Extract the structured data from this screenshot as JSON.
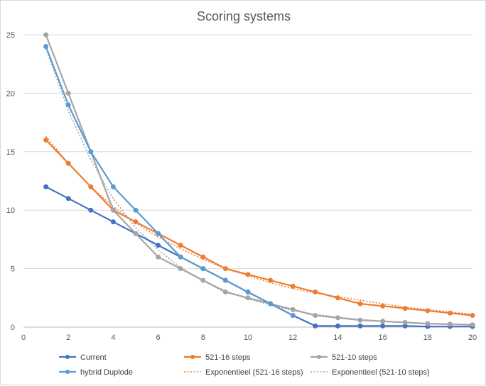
{
  "chart_data": {
    "type": "line",
    "title": "Scoring systems",
    "xlabel": "",
    "ylabel": "",
    "xlim": [
      0,
      20
    ],
    "ylim": [
      0,
      25
    ],
    "xticks": [
      0,
      2,
      4,
      6,
      8,
      10,
      12,
      14,
      16,
      18,
      20
    ],
    "yticks": [
      0,
      5,
      10,
      15,
      20,
      25
    ],
    "grid": "horizontal",
    "legend_position": "bottom",
    "series": [
      {
        "name": "Current",
        "color": "#4472c4",
        "style": "solid-markers",
        "x": [
          1,
          2,
          3,
          4,
          5,
          6,
          7,
          8,
          9,
          10,
          11,
          12,
          13,
          14,
          15,
          16,
          17,
          18,
          19,
          20
        ],
        "y": [
          12,
          11,
          10,
          9,
          8,
          7,
          6,
          5,
          4,
          3,
          2,
          1,
          0.1,
          0.1,
          0.1,
          0.1,
          0.1,
          0.05,
          0.05,
          0.05
        ]
      },
      {
        "name": "521-16 steps",
        "color": "#ed7d31",
        "style": "solid-markers",
        "x": [
          1,
          2,
          3,
          4,
          5,
          6,
          7,
          8,
          9,
          10,
          11,
          12,
          13,
          14,
          15,
          16,
          17,
          18,
          19,
          20
        ],
        "y": [
          16,
          14,
          12,
          10,
          9,
          8,
          7,
          6,
          5,
          4.5,
          4,
          3.5,
          3,
          2.5,
          2,
          1.8,
          1.6,
          1.4,
          1.2,
          1
        ]
      },
      {
        "name": "521-10 steps",
        "color": "#a5a5a5",
        "style": "solid-markers",
        "x": [
          1,
          2,
          3,
          4,
          5,
          6,
          7,
          8,
          9,
          10,
          11,
          12,
          13,
          14,
          15,
          16,
          17,
          18,
          19,
          20
        ],
        "y": [
          25,
          20,
          15,
          10,
          8,
          6,
          5,
          4,
          3,
          2.5,
          2,
          1.5,
          1,
          0.8,
          0.6,
          0.5,
          0.4,
          0.3,
          0.25,
          0.2
        ]
      },
      {
        "name": "hybrid Duplode",
        "color": "#5b9bd5",
        "style": "solid-markers",
        "x": [
          1,
          2,
          3,
          4,
          5,
          6,
          7,
          8,
          9,
          10,
          11,
          12
        ],
        "y": [
          24,
          19,
          15,
          12,
          10,
          8,
          6,
          5,
          4,
          3,
          2,
          1
        ]
      },
      {
        "name": "Exponentieel (521-16 steps)",
        "color": "#ed7d31",
        "style": "dotted",
        "x": [
          1,
          2,
          3,
          4,
          5,
          6,
          7,
          8,
          9,
          10,
          11,
          12,
          13,
          14,
          15,
          16,
          17,
          18,
          19,
          20
        ],
        "y": [
          16.3,
          14.0,
          12.0,
          10.3,
          8.9,
          7.7,
          6.7,
          5.8,
          5.0,
          4.4,
          3.8,
          3.3,
          2.9,
          2.6,
          2.3,
          2.0,
          1.7,
          1.5,
          1.3,
          1.1
        ]
      },
      {
        "name": "Exponentieel (521-10 steps)",
        "color": "#a5a5a5",
        "style": "dotted",
        "x": [
          1,
          2,
          3,
          4,
          5,
          6,
          7,
          8,
          9,
          10,
          11,
          12,
          13,
          14,
          15,
          16,
          17,
          18,
          19,
          20
        ],
        "y": [
          23.8,
          18.5,
          14.3,
          11.0,
          8.5,
          6.6,
          5.1,
          4.0,
          3.1,
          2.4,
          1.9,
          1.4,
          1.1,
          0.85,
          0.66,
          0.51,
          0.4,
          0.31,
          0.24,
          0.19
        ]
      }
    ],
    "legend_rows": [
      [
        "Current",
        "521-16 steps",
        "521-10 steps"
      ],
      [
        "hybrid Duplode",
        "Exponentieel (521-16 steps)",
        "Exponentieel (521-10 steps)"
      ]
    ]
  }
}
